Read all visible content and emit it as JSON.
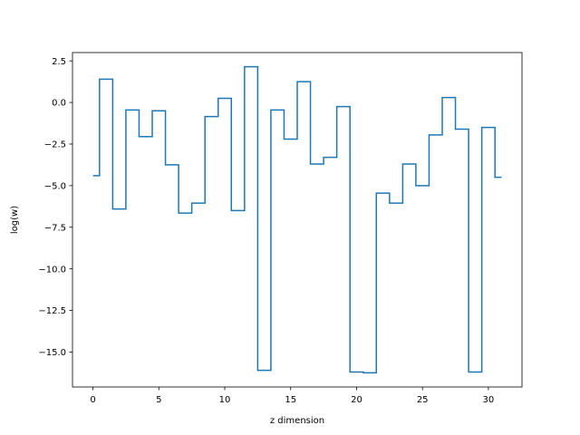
{
  "chart_data": {
    "type": "line",
    "drawstyle": "steps-mid",
    "title": "",
    "xlabel": "z dimension",
    "ylabel": "log(w)",
    "xlim": [
      -1.55,
      32.55
    ],
    "ylim": [
      -17.1,
      3.0
    ],
    "grid": false,
    "xticks": [
      0,
      5,
      10,
      15,
      20,
      25,
      30
    ],
    "xtick_labels": [
      "0",
      "5",
      "10",
      "15",
      "20",
      "25",
      "30"
    ],
    "yticks": [
      2.5,
      0.0,
      -2.5,
      -5.0,
      -7.5,
      -10.0,
      -12.5,
      -15.0
    ],
    "ytick_labels": [
      "2.5",
      "0.0",
      "−2.5",
      "−5.0",
      "−7.5",
      "−10.0",
      "−12.5",
      "−15.0"
    ],
    "series": [
      {
        "color": "#1f77b4",
        "x": [
          0,
          1,
          2,
          3,
          4,
          5,
          6,
          7,
          8,
          9,
          10,
          11,
          12,
          13,
          14,
          15,
          16,
          17,
          18,
          19,
          20,
          21,
          22,
          23,
          24,
          25,
          26,
          27,
          28,
          29,
          30,
          31
        ],
        "y": [
          -4.4,
          1.4,
          -6.4,
          -0.45,
          -2.05,
          -0.5,
          -3.75,
          -6.65,
          -6.05,
          -0.85,
          0.25,
          -6.5,
          2.15,
          -16.1,
          -0.45,
          -2.2,
          1.25,
          -3.7,
          -3.3,
          -0.25,
          -16.2,
          -16.25,
          -5.45,
          -6.05,
          -3.7,
          -5.0,
          -1.95,
          0.3,
          -1.6,
          -16.2,
          -1.5,
          -4.5
        ]
      }
    ]
  }
}
